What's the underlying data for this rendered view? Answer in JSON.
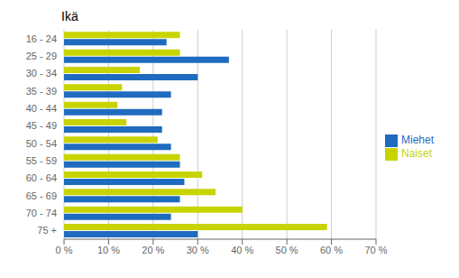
{
  "chart_data": {
    "type": "bar",
    "orientation": "horizontal",
    "title": "Ikä",
    "categories": [
      "16 - 24",
      "25 - 29",
      "30 - 34",
      "35 - 39",
      "40 - 44",
      "45 - 49",
      "50 - 54",
      "55 - 59",
      "60 - 64",
      "65 - 69",
      "70 - 74",
      "75 +"
    ],
    "series": [
      {
        "name": "Naiset",
        "color": "#c8d400",
        "values": [
          26,
          26,
          17,
          13,
          12,
          14,
          21,
          26,
          31,
          34,
          40,
          59
        ]
      },
      {
        "name": "Miehet",
        "color": "#1f6bbf",
        "values": [
          23,
          37,
          30,
          24,
          22,
          22,
          24,
          26,
          27,
          26,
          24,
          30
        ]
      }
    ],
    "xlim": [
      0,
      70
    ],
    "xticks": [
      {
        "value": 0,
        "label": "0 %"
      },
      {
        "value": 10,
        "label": "10 %"
      },
      {
        "value": 20,
        "label": "20 %"
      },
      {
        "value": 30,
        "label": "30 %"
      },
      {
        "value": 40,
        "label": "40 %"
      },
      {
        "value": 50,
        "label": "50 %"
      },
      {
        "value": 60,
        "label": "60 %"
      },
      {
        "value": 70,
        "label": "70 %"
      }
    ],
    "grid": true,
    "legend": "right"
  }
}
